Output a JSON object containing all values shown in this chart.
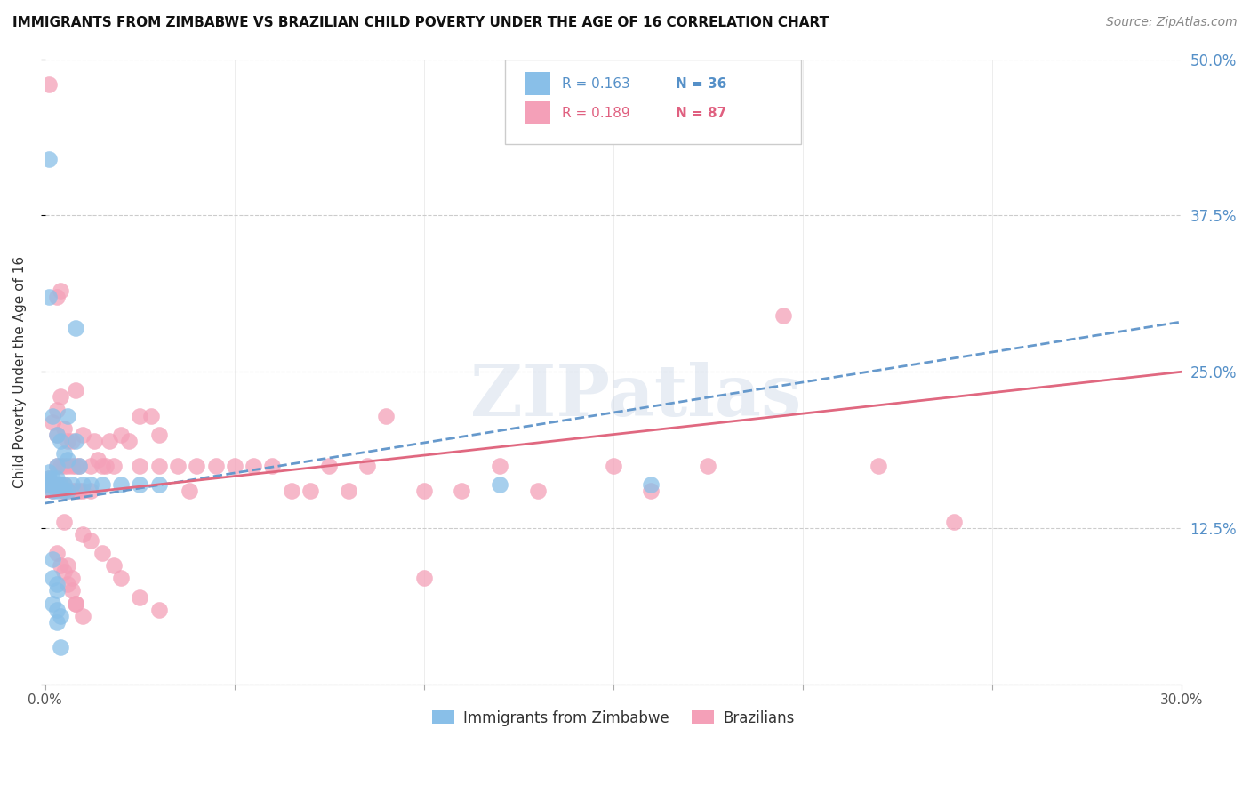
{
  "title": "IMMIGRANTS FROM ZIMBABWE VS BRAZILIAN CHILD POVERTY UNDER THE AGE OF 16 CORRELATION CHART",
  "source": "Source: ZipAtlas.com",
  "ylabel": "Child Poverty Under the Age of 16",
  "xlim": [
    0.0,
    0.3
  ],
  "ylim": [
    0.0,
    0.5
  ],
  "yticks": [
    0.0,
    0.125,
    0.25,
    0.375,
    0.5
  ],
  "ytick_labels": [
    "",
    "12.5%",
    "25.0%",
    "37.5%",
    "50.0%"
  ],
  "grid_color": "#cccccc",
  "blue_color": "#89bfe8",
  "pink_color": "#f4a0b8",
  "blue_line_color": "#6699cc",
  "pink_line_color": "#e06880",
  "legend_R_blue": "R = 0.163",
  "legend_N_blue": "N = 36",
  "legend_R_pink": "R = 0.189",
  "legend_N_pink": "N = 87",
  "legend_label_blue": "Immigrants from Zimbabwe",
  "legend_label_pink": "Brazilians",
  "watermark": "ZIPatlas",
  "blue_scatter_x": [
    0.001,
    0.001,
    0.001,
    0.002,
    0.002,
    0.002,
    0.002,
    0.002,
    0.003,
    0.003,
    0.003,
    0.003,
    0.003,
    0.004,
    0.004,
    0.005,
    0.005,
    0.005,
    0.006,
    0.006,
    0.006,
    0.007,
    0.008,
    0.009,
    0.01,
    0.012,
    0.015,
    0.02,
    0.025,
    0.03,
    0.002,
    0.002,
    0.003,
    0.12,
    0.16,
    0.001
  ],
  "blue_scatter_y": [
    0.16,
    0.165,
    0.17,
    0.155,
    0.16,
    0.16,
    0.165,
    0.215,
    0.155,
    0.16,
    0.165,
    0.175,
    0.2,
    0.16,
    0.195,
    0.155,
    0.16,
    0.185,
    0.155,
    0.18,
    0.215,
    0.16,
    0.195,
    0.175,
    0.16,
    0.16,
    0.16,
    0.16,
    0.16,
    0.16,
    0.1,
    0.085,
    0.075,
    0.16,
    0.16,
    0.42
  ],
  "blue_scatter_x2": [
    0.003,
    0.002,
    0.003,
    0.004,
    0.003,
    0.004
  ],
  "blue_scatter_y2": [
    0.08,
    0.065,
    0.06,
    0.055,
    0.05,
    0.03
  ],
  "blue_outlier_x": [
    0.008
  ],
  "blue_outlier_y": [
    0.285
  ],
  "blue_left_outlier_x": [
    0.001
  ],
  "blue_left_outlier_y": [
    0.31
  ],
  "pink_scatter_x": [
    0.001,
    0.001,
    0.002,
    0.002,
    0.002,
    0.003,
    0.003,
    0.003,
    0.003,
    0.004,
    0.004,
    0.004,
    0.004,
    0.005,
    0.005,
    0.005,
    0.005,
    0.006,
    0.006,
    0.006,
    0.007,
    0.007,
    0.007,
    0.008,
    0.008,
    0.008,
    0.009,
    0.009,
    0.01,
    0.01,
    0.012,
    0.012,
    0.013,
    0.014,
    0.015,
    0.016,
    0.017,
    0.018,
    0.02,
    0.022,
    0.025,
    0.025,
    0.028,
    0.03,
    0.03,
    0.035,
    0.038,
    0.04,
    0.045,
    0.05,
    0.055,
    0.06,
    0.065,
    0.07,
    0.075,
    0.08,
    0.085,
    0.09,
    0.1,
    0.11,
    0.12,
    0.13,
    0.15,
    0.16,
    0.175,
    0.195,
    0.22,
    0.003,
    0.004,
    0.005,
    0.006,
    0.007,
    0.008,
    0.01,
    0.012,
    0.015,
    0.018,
    0.02,
    0.025,
    0.03,
    0.003,
    0.004,
    0.005,
    0.006,
    0.007,
    0.008,
    0.01
  ],
  "pink_scatter_y": [
    0.16,
    0.165,
    0.155,
    0.16,
    0.21,
    0.16,
    0.175,
    0.2,
    0.22,
    0.155,
    0.16,
    0.175,
    0.23,
    0.155,
    0.16,
    0.175,
    0.205,
    0.155,
    0.175,
    0.195,
    0.155,
    0.175,
    0.195,
    0.155,
    0.175,
    0.235,
    0.155,
    0.175,
    0.155,
    0.2,
    0.155,
    0.175,
    0.195,
    0.18,
    0.175,
    0.175,
    0.195,
    0.175,
    0.2,
    0.195,
    0.175,
    0.215,
    0.215,
    0.175,
    0.2,
    0.175,
    0.155,
    0.175,
    0.175,
    0.175,
    0.175,
    0.175,
    0.155,
    0.155,
    0.175,
    0.155,
    0.175,
    0.215,
    0.155,
    0.155,
    0.175,
    0.155,
    0.175,
    0.155,
    0.175,
    0.295,
    0.175,
    0.105,
    0.095,
    0.09,
    0.08,
    0.075,
    0.065,
    0.12,
    0.115,
    0.105,
    0.095,
    0.085,
    0.07,
    0.06,
    0.31,
    0.315,
    0.13,
    0.095,
    0.085,
    0.065,
    0.055
  ],
  "pink_outlier_x": [
    0.001
  ],
  "pink_outlier_y": [
    0.48
  ],
  "pink_right_outlier_x": [
    0.24
  ],
  "pink_right_outlier_y": [
    0.13
  ],
  "pink_mid_outlier_x": [
    0.1
  ],
  "pink_mid_outlier_y": [
    0.085
  ],
  "blue_line_x": [
    0.0,
    0.3
  ],
  "blue_line_y": [
    0.145,
    0.29
  ],
  "pink_line_x": [
    0.0,
    0.3
  ],
  "pink_line_y": [
    0.15,
    0.25
  ]
}
